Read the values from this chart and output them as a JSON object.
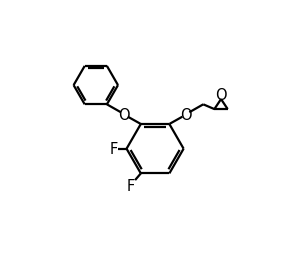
{
  "background": "#ffffff",
  "line_color": "#000000",
  "line_width": 1.6,
  "font_size": 10.5,
  "figsize": [
    3.07,
    2.55
  ],
  "dpi": 100,
  "xlim": [
    -1.0,
    8.5
  ],
  "ylim": [
    -1.5,
    6.5
  ]
}
